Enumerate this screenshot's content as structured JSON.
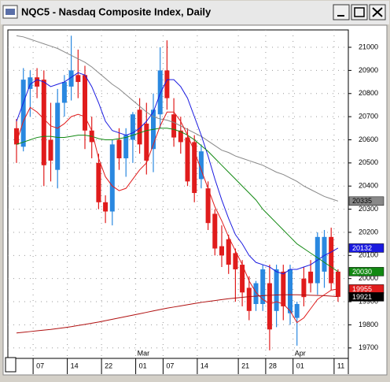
{
  "chart_data": {
    "type": "candlestick",
    "title": "NQC5 - Nasdaq Composite Index, Daily",
    "categories": [
      null,
      null,
      null,
      "07",
      null,
      null,
      null,
      null,
      "14",
      null,
      null,
      null,
      null,
      "22",
      null,
      null,
      null,
      null,
      "01",
      null,
      null,
      null,
      "07",
      null,
      null,
      null,
      null,
      "14",
      null,
      null,
      null,
      null,
      null,
      "21",
      null,
      null,
      null,
      "28",
      null,
      null,
      null,
      "01",
      null,
      null,
      null,
      null,
      null,
      "11"
    ],
    "month_categories": [
      null,
      null,
      null,
      null,
      null,
      null,
      null,
      null,
      null,
      null,
      null,
      null,
      null,
      null,
      null,
      null,
      null,
      null,
      "Mar",
      null,
      null,
      null,
      null,
      null,
      null,
      null,
      null,
      null,
      null,
      null,
      null,
      null,
      null,
      null,
      null,
      null,
      null,
      null,
      null,
      null,
      null,
      "Apr",
      null,
      null,
      null,
      null,
      null,
      null
    ],
    "candles": {
      "open": [
        20650,
        20570,
        20820,
        20870,
        20860,
        20600,
        20470,
        20760,
        20830,
        20880,
        20880,
        20640,
        20500,
        20330,
        20290,
        20600,
        20520,
        20600,
        20730,
        20670,
        20560,
        20710,
        20900,
        20710,
        20640,
        20610,
        20590,
        20430,
        20390,
        20280,
        20140,
        20170,
        20110,
        20060,
        19960,
        19890,
        19890,
        19980,
        19860,
        20030,
        19850,
        19830,
        20000,
        20030,
        19980,
        20030,
        20180,
        20030
      ],
      "high": [
        20690,
        20910,
        20900,
        20910,
        20900,
        20760,
        20820,
        20880,
        21050,
        20990,
        20920,
        20700,
        20540,
        20360,
        20600,
        20650,
        20650,
        20720,
        20780,
        20760,
        20800,
        21000,
        21030,
        20780,
        20700,
        20650,
        20620,
        20580,
        20420,
        20300,
        20230,
        20190,
        20130,
        20080,
        20010,
        19990,
        20060,
        20060,
        20060,
        20060,
        20060,
        19900,
        20050,
        20080,
        20200,
        20210,
        20220,
        20040
      ],
      "low": [
        20500,
        20550,
        20700,
        20780,
        20400,
        20420,
        20390,
        20700,
        20770,
        20780,
        20560,
        20520,
        20300,
        20240,
        20230,
        20470,
        20440,
        20500,
        20540,
        20450,
        20460,
        20650,
        20730,
        20570,
        20540,
        20400,
        20330,
        20390,
        20210,
        20100,
        20050,
        20020,
        19900,
        19880,
        19820,
        19860,
        19860,
        19690,
        19790,
        19820,
        19800,
        19710,
        19880,
        19940,
        19930,
        19960,
        19950,
        19900
      ],
      "close": [
        20580,
        20860,
        20870,
        20830,
        20490,
        20510,
        20760,
        20850,
        20900,
        20850,
        20640,
        20590,
        20330,
        20290,
        20580,
        20520,
        20620,
        20710,
        20580,
        20510,
        20730,
        20900,
        20780,
        20610,
        20590,
        20420,
        20370,
        20550,
        20240,
        20130,
        20100,
        20060,
        20040,
        19940,
        19860,
        19980,
        20040,
        19780,
        20040,
        19880,
        20040,
        19890,
        19920,
        19980,
        20180,
        20180,
        19980,
        19921
      ],
      "up_color": "#2a88e0",
      "down_color": "#e01c1c",
      "close_label_color": "#000000"
    },
    "series": [
      {
        "color": "#888888",
        "label_text": "#000000",
        "values": [
          21050,
          21045,
          21035,
          21025,
          21015,
          21005,
          20995,
          20980,
          20965,
          20950,
          20935,
          20915,
          20890,
          20865,
          20840,
          20820,
          20795,
          20770,
          20745,
          20720,
          20700,
          20690,
          20685,
          20675,
          20660,
          20645,
          20630,
          20615,
          20595,
          20575,
          20555,
          20545,
          20530,
          20520,
          20510,
          20500,
          20490,
          20475,
          20460,
          20450,
          20435,
          20420,
          20400,
          20385,
          20370,
          20355,
          20345,
          20335
        ]
      },
      {
        "color": "#1a1ae0",
        "label_text": "#ffffff",
        "values": [
          20680,
          20760,
          20840,
          20860,
          20850,
          20830,
          20840,
          20850,
          20870,
          20890,
          20880,
          20830,
          20760,
          20680,
          20640,
          20630,
          20620,
          20630,
          20650,
          20680,
          20720,
          20800,
          20860,
          20860,
          20830,
          20780,
          20700,
          20620,
          20530,
          20430,
          20340,
          20260,
          20190,
          20150,
          20100,
          20070,
          20060,
          20050,
          20030,
          20020,
          20040,
          20040,
          20050,
          20060,
          20080,
          20100,
          20115,
          20132
        ]
      },
      {
        "color": "#118811",
        "label_text": "#ffffff",
        "values": [
          20580,
          20590,
          20600,
          20610,
          20615,
          20615,
          20610,
          20610,
          20615,
          20620,
          20620,
          20615,
          20605,
          20600,
          20600,
          20605,
          20610,
          20620,
          20630,
          20640,
          20645,
          20650,
          20650,
          20645,
          20635,
          20620,
          20600,
          20575,
          20550,
          20520,
          20490,
          20460,
          20430,
          20400,
          20370,
          20340,
          20300,
          20270,
          20240,
          20210,
          20180,
          20150,
          20130,
          20110,
          20090,
          20070,
          20050,
          20030
        ]
      },
      {
        "color": "#e01c1c",
        "label_text": "#ffffff",
        "values": [
          20590,
          20680,
          20740,
          20720,
          20690,
          20660,
          20650,
          20670,
          20700,
          20710,
          20700,
          20640,
          20520,
          20440,
          20400,
          20380,
          20390,
          20430,
          20470,
          20500,
          20580,
          20660,
          20720,
          20720,
          20680,
          20620,
          20550,
          20470,
          20390,
          20310,
          20250,
          20180,
          20120,
          20060,
          19990,
          19940,
          19910,
          19890,
          19900,
          19890,
          19860,
          19810,
          19830,
          19870,
          19910,
          19930,
          19950,
          19955
        ]
      },
      {
        "color": "#b01010",
        "values": [
          19765,
          19768,
          19771,
          19774,
          19777,
          19780,
          19784,
          19788,
          19792,
          19797,
          19802,
          19807,
          19812,
          19818,
          19824,
          19830,
          19836,
          19842,
          19848,
          19854,
          19860,
          19866,
          19872,
          19877,
          19882,
          19887,
          19892,
          19897,
          19901,
          19905,
          19909,
          19913,
          19916,
          19919,
          19922,
          19924,
          19926,
          19928,
          19929,
          19930,
          19930,
          19930,
          19929,
          19928,
          19927,
          19926,
          19924,
          19922
        ]
      }
    ],
    "ylim": [
      19655,
      21075
    ],
    "yticks": [
      19700,
      19800,
      19900,
      20000,
      20100,
      20200,
      20300,
      20400,
      20500,
      20600,
      20700,
      20800,
      20900,
      21000
    ],
    "grid": true
  }
}
